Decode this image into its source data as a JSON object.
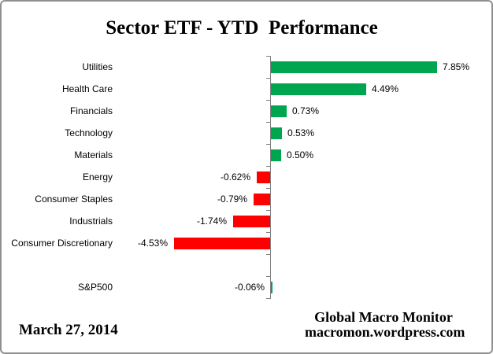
{
  "page": {
    "title": "Sector ETF - YTD  Performance",
    "footer_date": "March 27, 2014",
    "credit": [
      "Global Macro Monitor",
      "macromon.wordpress.com"
    ]
  },
  "colors": {
    "positive_bar": "#00A550",
    "negative_bar": "#FF0000",
    "axis": "#808080",
    "border": "#909090",
    "text": "#000000"
  },
  "chart_data": {
    "type": "bar",
    "orientation": "horizontal",
    "title": "Sector ETF - YTD  Performance",
    "xlabel": "",
    "ylabel": "",
    "grid": false,
    "legend": false,
    "axis_range_pct": [
      -5.5,
      9.0
    ],
    "categories": [
      "Utilities",
      "Health Care",
      "Financials",
      "Technology",
      "Materials",
      "Energy",
      "Consumer Staples",
      "Industrials",
      "Consumer Discretionary",
      "S&P500"
    ],
    "values": [
      7.85,
      4.49,
      0.73,
      0.53,
      0.5,
      -0.62,
      -0.79,
      -1.74,
      -4.53,
      -0.06
    ],
    "value_labels": [
      "7.85%",
      "4.49%",
      "0.73%",
      "0.53%",
      "0.50%",
      "-0.62%",
      "-0.79%",
      "-1.74%",
      "-4.53%",
      "-0.06%"
    ],
    "bar_colors": [
      "#00A550",
      "#00A550",
      "#00A550",
      "#00A550",
      "#00A550",
      "#FF0000",
      "#FF0000",
      "#FF0000",
      "#FF0000",
      "#00A550"
    ],
    "separator_gap_before": "S&P500"
  }
}
